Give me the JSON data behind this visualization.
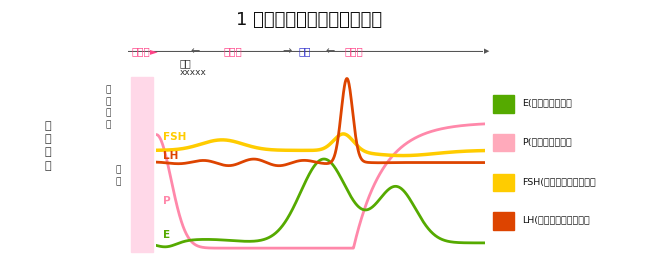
{
  "title": "1 周期内のホルモン値の変動",
  "title_fontsize": 13,
  "background_color": "#ffffff",
  "colors": {
    "E": "#55aa00",
    "P": "#ff88aa",
    "FSH": "#ffcc00",
    "LH": "#dd4400"
  },
  "legend_entries": [
    {
      "label": "E(卵胞ホルモン）",
      "color": "#55aa00"
    },
    {
      "label": "P(黄体ホルモン）",
      "color": "#ffaabb"
    },
    {
      "label": "FSH(卵巣刺激ホルモン）",
      "color": "#ffcc00"
    },
    {
      "label": "LH(黄体形成ホルモン）",
      "color": "#dd4400"
    }
  ]
}
